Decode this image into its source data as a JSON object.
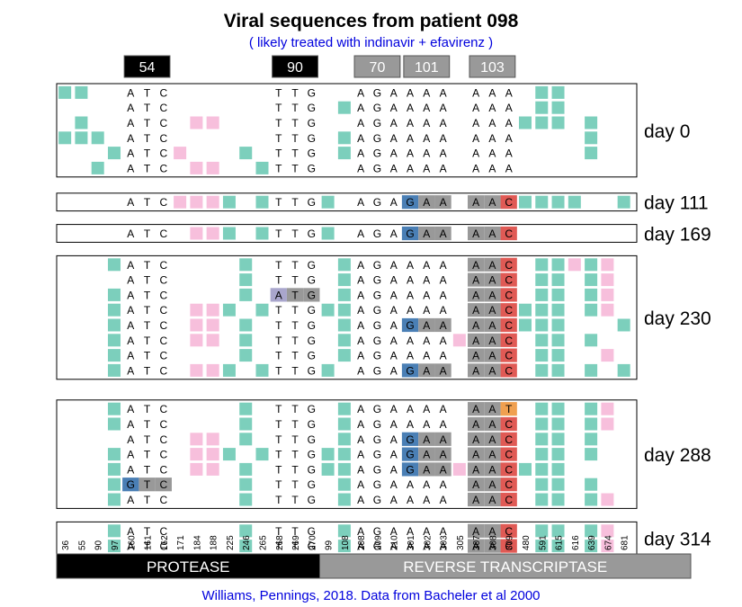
{
  "title": "Viral sequences from patient 098",
  "subtitle": "( likely treated with indinavir + efavirenz )",
  "credit": "Williams, Pennings, 2018. Data from Bacheler et al 2000",
  "colors": {
    "synonymous": "#7ccfbc",
    "nonsynonymous": "#f7bfdc",
    "mutation_box": "#999999",
    "mutated_G": "#4a7fb5",
    "mutated_C": "#e05a55",
    "mutated_T": "#f0a050",
    "atg_box": "#a9a6cc",
    "protease_bar": "#000000",
    "rt_bar": "#999999"
  },
  "chart_data": {
    "type": "sequence-alignment",
    "positions": [
      "36",
      "55",
      "90",
      "97",
      "160",
      "161",
      "162",
      "171",
      "184",
      "188",
      "225",
      "246",
      "265",
      "268",
      "269",
      "270",
      "99",
      "108",
      "208",
      "209",
      "210",
      "301",
      "302",
      "303",
      "305",
      "307",
      "308",
      "309",
      "480",
      "591",
      "615",
      "616",
      "639",
      "674",
      "681"
    ],
    "codon_labels": [
      {
        "label": "54",
        "first": 4,
        "last": 6,
        "style": "black"
      },
      {
        "label": "90",
        "first": 13,
        "last": 15,
        "style": "black"
      },
      {
        "label": "70",
        "first": 18,
        "last": 20,
        "style": "grey"
      },
      {
        "label": "101",
        "first": 21,
        "last": 23,
        "style": "grey"
      },
      {
        "label": "103",
        "first": 25,
        "last": 27,
        "style": "grey"
      }
    ],
    "regions": [
      {
        "label": "PROTEASE",
        "first": 0,
        "last": 15
      },
      {
        "label": "REVERSE TRANSCRIPTASE",
        "first": 16,
        "last": 34
      }
    ],
    "samples": [
      {
        "label": "day 0",
        "sequences": [
          {
            "bases": "ATCTTGAGAAAAAAA",
            "syn": [
              0,
              1,
              29,
              30
            ],
            "nonsyn": [],
            "mut": []
          },
          {
            "bases": "ATCTTGAGAAAAAAA",
            "syn": [
              17,
              29,
              30
            ],
            "nonsyn": [],
            "mut": []
          },
          {
            "bases": "ATCTTGAGAAAAAAA",
            "syn": [
              1,
              28,
              29,
              30,
              32
            ],
            "nonsyn": [
              8,
              9
            ],
            "mut": []
          },
          {
            "bases": "ATCTTGAGAAAAAAA",
            "syn": [
              0,
              1,
              2,
              17,
              32
            ],
            "nonsyn": [],
            "mut": []
          },
          {
            "bases": "ATCTTGAGAAAAAAA",
            "syn": [
              3,
              11,
              17,
              32
            ],
            "nonsyn": [
              7
            ],
            "mut": []
          },
          {
            "bases": "ATCTTGAGAAAAAAA",
            "syn": [
              2,
              12
            ],
            "nonsyn": [
              8,
              9
            ],
            "mut": []
          }
        ]
      },
      {
        "label": "day 111",
        "sequences": [
          {
            "bases": "ATCTTGAGAGAAAAC",
            "syn": [
              10,
              12,
              16,
              28,
              29,
              30,
              31,
              34
            ],
            "nonsyn": [
              7,
              8,
              9
            ],
            "mut": [
              9,
              10,
              11,
              12,
              13,
              14
            ]
          }
        ]
      },
      {
        "label": "day 169",
        "sequences": [
          {
            "bases": "ATCTTGAGAGAAAAC",
            "syn": [
              10,
              12,
              16
            ],
            "nonsyn": [
              8,
              9
            ],
            "mut": [
              9,
              10,
              11,
              12,
              13,
              14
            ]
          }
        ]
      },
      {
        "label": "day 230",
        "sequences": [
          {
            "bases": "ATCTTGAGAAAAAAC",
            "syn": [
              3,
              11,
              17,
              29,
              30,
              32
            ],
            "nonsyn": [
              31,
              33
            ],
            "mut": [
              12,
              13,
              14
            ]
          },
          {
            "bases": "ATCTTGAGAAAAAAC",
            "syn": [
              11,
              17,
              29,
              30,
              32
            ],
            "nonsyn": [
              33
            ],
            "mut": [
              12,
              13,
              14
            ]
          },
          {
            "bases": "ATCATGAGAAAAAAC",
            "syn": [
              3,
              11,
              17,
              29,
              30,
              32
            ],
            "nonsyn": [
              33
            ],
            "mut": [
              3,
              4,
              5,
              12,
              13,
              14
            ]
          },
          {
            "bases": "ATCTTGAGAAAAAAC",
            "syn": [
              3,
              10,
              12,
              16,
              17,
              28,
              29,
              30,
              32
            ],
            "nonsyn": [
              8,
              9,
              33
            ],
            "mut": [
              12,
              13,
              14
            ]
          },
          {
            "bases": "ATCTTGAGAGAAAAC",
            "syn": [
              3,
              11,
              17,
              28,
              29,
              30,
              34
            ],
            "nonsyn": [
              8,
              9
            ],
            "mut": [
              9,
              10,
              11,
              12,
              13,
              14
            ]
          },
          {
            "bases": "ATCTTGAGAAAAAAC",
            "syn": [
              3,
              11,
              17,
              29,
              30,
              32
            ],
            "nonsyn": [
              8,
              9,
              24
            ],
            "mut": [
              12,
              13,
              14
            ]
          },
          {
            "bases": "ATCTTGAGAAAAAAC",
            "syn": [
              3,
              11,
              17,
              29,
              30
            ],
            "nonsyn": [
              33
            ],
            "mut": [
              12,
              13,
              14
            ]
          },
          {
            "bases": "ATCTTGAGAGAAAAC",
            "syn": [
              3,
              10,
              12,
              16,
              29,
              30,
              32,
              34
            ],
            "nonsyn": [
              8,
              9
            ],
            "mut": [
              9,
              10,
              11,
              12,
              13,
              14
            ]
          }
        ]
      },
      {
        "label": "day 288",
        "sequences": [
          {
            "bases": "ATCTTGAGAAAAAAT",
            "syn": [
              3,
              11,
              17,
              29,
              30,
              32
            ],
            "nonsyn": [
              33
            ],
            "mut": [
              12,
              13,
              14
            ]
          },
          {
            "bases": "ATCTTGAGAAAAAAC",
            "syn": [
              3,
              11,
              17,
              29,
              30,
              32
            ],
            "nonsyn": [
              33
            ],
            "mut": [
              12,
              13,
              14
            ]
          },
          {
            "bases": "ATCTTGAGAGAAAAC",
            "syn": [
              11,
              17,
              29,
              30,
              32
            ],
            "nonsyn": [
              8,
              9
            ],
            "mut": [
              9,
              10,
              11,
              12,
              13,
              14
            ]
          },
          {
            "bases": "ATCTTGAGAGAAAAC",
            "syn": [
              3,
              10,
              12,
              16,
              17,
              29,
              30,
              32
            ],
            "nonsyn": [
              8,
              9
            ],
            "mut": [
              9,
              10,
              11,
              12,
              13,
              14
            ]
          },
          {
            "bases": "ATCTTGAGAGAAAAC",
            "syn": [
              3,
              11,
              16,
              17,
              28,
              29,
              30
            ],
            "nonsyn": [
              8,
              9,
              24
            ],
            "mut": [
              9,
              10,
              11,
              12,
              13,
              14
            ]
          },
          {
            "bases": "GTCTTGAGAAAAAAC",
            "syn": [
              3,
              11,
              17,
              29,
              30,
              32
            ],
            "nonsyn": [],
            "mut": [
              0,
              1,
              2,
              12,
              13,
              14
            ]
          },
          {
            "bases": "ATCTTGAGAAAAAAC",
            "syn": [
              3,
              11,
              17,
              29,
              30,
              32
            ],
            "nonsyn": [
              33
            ],
            "mut": [
              12,
              13,
              14
            ]
          }
        ]
      },
      {
        "label": "day 314",
        "sequences": [
          {
            "bases": "ATCTTGAGAAAAAAC",
            "syn": [
              3,
              11,
              17,
              29,
              30,
              32
            ],
            "nonsyn": [
              33
            ],
            "mut": [
              12,
              13,
              14
            ]
          },
          {
            "bases": "ATCTTGAGAAAAAAC",
            "syn": [
              3,
              11,
              17,
              29,
              30,
              32
            ],
            "nonsyn": [
              33
            ],
            "mut": [
              12,
              13,
              14
            ]
          }
        ]
      }
    ]
  }
}
